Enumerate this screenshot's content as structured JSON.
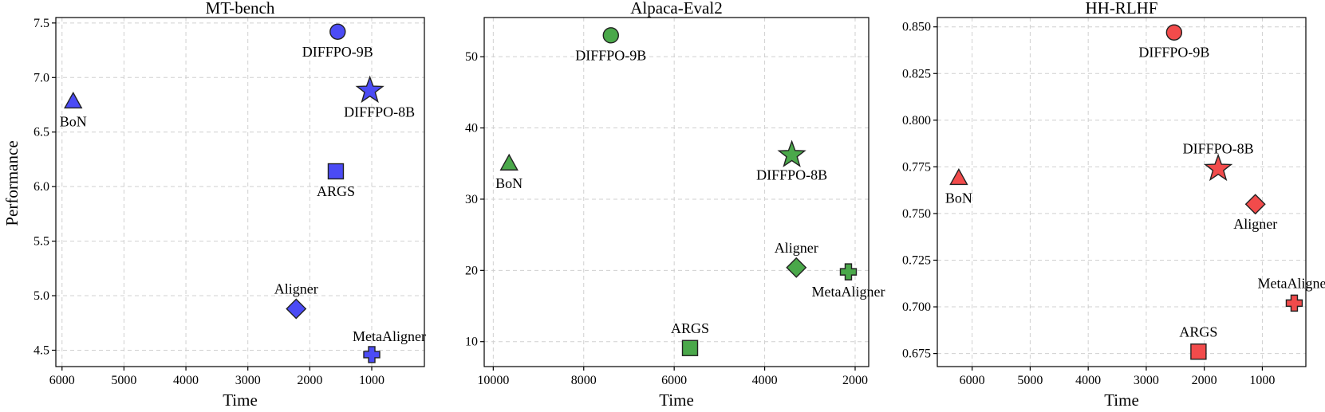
{
  "figure": {
    "ylabel": "Performance"
  },
  "chart_data": [
    {
      "type": "scatter",
      "title": "MT-bench",
      "xlabel": "Time",
      "ylabel": "Performance",
      "x_reversed": true,
      "xlim": [
        6100,
        150
      ],
      "ylim": [
        4.35,
        7.55
      ],
      "xticks": [
        6000,
        5000,
        4000,
        3000,
        2000,
        1000
      ],
      "yticks": [
        4.5,
        5.0,
        5.5,
        6.0,
        6.5,
        7.0,
        7.5
      ],
      "ytick_labels": [
        "4.5",
        "5.0",
        "5.5",
        "6.0",
        "6.5",
        "7.0",
        "7.5"
      ],
      "grid": true,
      "color": "#4b4bf5",
      "points": [
        {
          "name": "DIFFPO-9B",
          "x": 1550,
          "y": 7.42,
          "marker": "circle",
          "label_pos": "below"
        },
        {
          "name": "DIFFPO-8B",
          "x": 1030,
          "y": 6.88,
          "marker": "star",
          "label_pos": "below-right"
        },
        {
          "name": "BoN",
          "x": 5820,
          "y": 6.78,
          "marker": "triangle",
          "label_pos": "below"
        },
        {
          "name": "ARGS",
          "x": 1580,
          "y": 6.14,
          "marker": "square",
          "label_pos": "below"
        },
        {
          "name": "Aligner",
          "x": 2220,
          "y": 4.88,
          "marker": "diamond",
          "label_pos": "above"
        },
        {
          "name": "MetaAligner",
          "x": 1000,
          "y": 4.46,
          "marker": "plus",
          "label_pos": "above-right"
        }
      ]
    },
    {
      "type": "scatter",
      "title": "Alpaca-Eval2",
      "xlabel": "Time",
      "ylabel": "",
      "x_reversed": true,
      "xlim": [
        10200,
        1700
      ],
      "ylim": [
        6.5,
        55.5
      ],
      "xticks": [
        10000,
        8000,
        6000,
        4000,
        2000
      ],
      "yticks": [
        10,
        20,
        30,
        40,
        50
      ],
      "ytick_labels": [
        "10",
        "20",
        "30",
        "40",
        "50"
      ],
      "grid": true,
      "color": "#4aa84a",
      "points": [
        {
          "name": "DIFFPO-9B",
          "x": 7400,
          "y": 53.0,
          "marker": "circle",
          "label_pos": "below"
        },
        {
          "name": "BoN",
          "x": 9650,
          "y": 35.0,
          "marker": "triangle",
          "label_pos": "below"
        },
        {
          "name": "DIFFPO-8B",
          "x": 3400,
          "y": 36.2,
          "marker": "star",
          "label_pos": "below"
        },
        {
          "name": "Aligner",
          "x": 3300,
          "y": 20.4,
          "marker": "diamond",
          "label_pos": "above"
        },
        {
          "name": "MetaAligner",
          "x": 2150,
          "y": 19.8,
          "marker": "plus",
          "label_pos": "below"
        },
        {
          "name": "ARGS",
          "x": 5650,
          "y": 9.1,
          "marker": "square",
          "label_pos": "above"
        }
      ]
    },
    {
      "type": "scatter",
      "title": "HH-RLHF",
      "xlabel": "Time",
      "ylabel": "",
      "x_reversed": true,
      "xlim": [
        6600,
        250
      ],
      "ylim": [
        0.668,
        0.855
      ],
      "xticks": [
        6000,
        5000,
        4000,
        3000,
        2000,
        1000
      ],
      "yticks": [
        0.675,
        0.7,
        0.725,
        0.75,
        0.775,
        0.8,
        0.825,
        0.85
      ],
      "ytick_labels": [
        "0.675",
        "0.700",
        "0.725",
        "0.750",
        "0.775",
        "0.800",
        "0.825",
        "0.850"
      ],
      "grid": true,
      "color": "#f24b4b",
      "points": [
        {
          "name": "DIFFPO-9B",
          "x": 2520,
          "y": 0.847,
          "marker": "circle",
          "label_pos": "below"
        },
        {
          "name": "BoN",
          "x": 6230,
          "y": 0.769,
          "marker": "triangle",
          "label_pos": "below"
        },
        {
          "name": "DIFFPO-8B",
          "x": 1760,
          "y": 0.774,
          "marker": "star",
          "label_pos": "above"
        },
        {
          "name": "Aligner",
          "x": 1120,
          "y": 0.755,
          "marker": "diamond",
          "label_pos": "below"
        },
        {
          "name": "MetaAligner",
          "x": 450,
          "y": 0.702,
          "marker": "plus",
          "label_pos": "above"
        },
        {
          "name": "ARGS",
          "x": 2100,
          "y": 0.676,
          "marker": "square",
          "label_pos": "above"
        }
      ]
    }
  ]
}
